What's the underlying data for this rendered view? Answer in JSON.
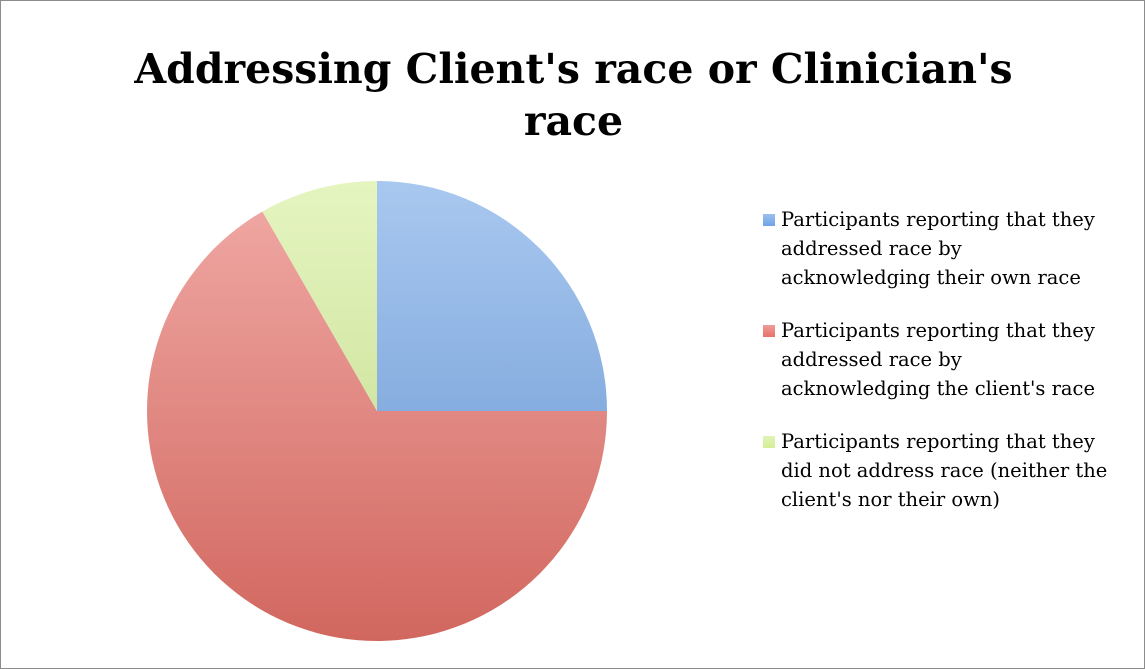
{
  "chart_data": {
    "type": "pie",
    "title": "Addressing Client's race or Clinician's race",
    "series": [
      {
        "name": "Participants reporting that they addressed race by acknowledging their own race",
        "color": "#6fa3e6",
        "values": [
          25
        ]
      },
      {
        "name": "Participants reporting that they addressed race by acknowledging the client's race",
        "color": "#e8726a",
        "values": [
          66.7
        ]
      },
      {
        "name": "Participants reporting that they did not address race (neither the client's nor their own)",
        "color": "#d4ef96",
        "values": [
          8.3
        ]
      }
    ],
    "legend": "right"
  }
}
